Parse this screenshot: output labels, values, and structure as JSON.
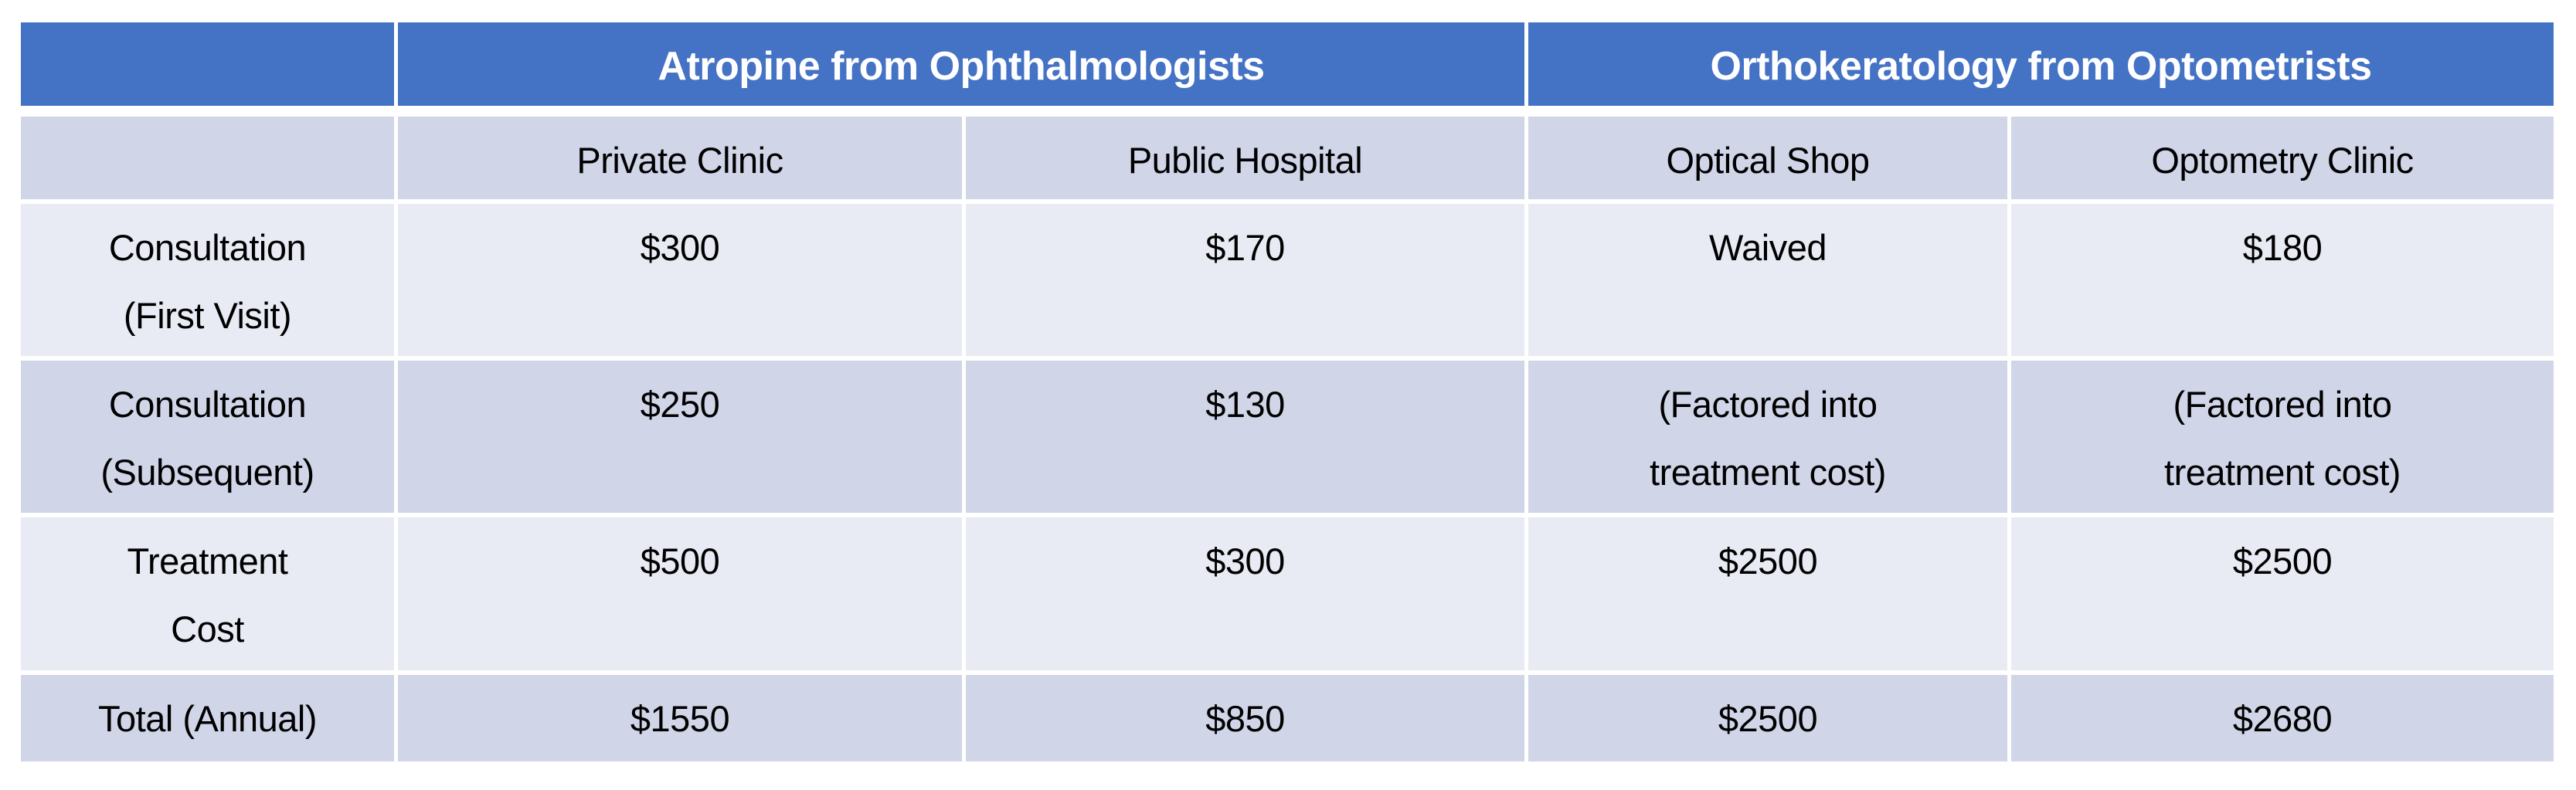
{
  "chart_data": {
    "type": "table",
    "title": "",
    "column_groups": [
      {
        "label": "Atropine from Ophthalmologists"
      },
      {
        "label": "Orthokeratology from Optometrists"
      }
    ],
    "columns": [
      "Private Clinic",
      "Public Hospital",
      "Optical Shop",
      "Optometry Clinic"
    ],
    "rows": [
      {
        "label": "Consultation\n(First Visit)",
        "values": [
          "$300",
          "$170",
          "Waived",
          "$180"
        ]
      },
      {
        "label": "Consultation\n(Subsequent)",
        "values": [
          "$250",
          "$130",
          "(Factored into\ntreatment cost)",
          "(Factored into\ntreatment cost)"
        ]
      },
      {
        "label": "Treatment\nCost",
        "values": [
          "$500",
          "$300",
          "$2500",
          "$2500"
        ]
      },
      {
        "label": "Total (Annual)",
        "values": [
          "$1550",
          "$850",
          "$2500",
          "$2680"
        ]
      }
    ],
    "layout": {
      "banding": [
        "dark",
        "light",
        "dark",
        "light",
        "dark"
      ],
      "grid": "white gaps between cells"
    },
    "colors": {
      "header_bg": "#4472C4",
      "header_text": "#FFFFFF",
      "band_dark": "#D0D5E8",
      "band_light": "#E9EBF4",
      "body_text": "#000000",
      "background": "#FFFFFF"
    }
  }
}
